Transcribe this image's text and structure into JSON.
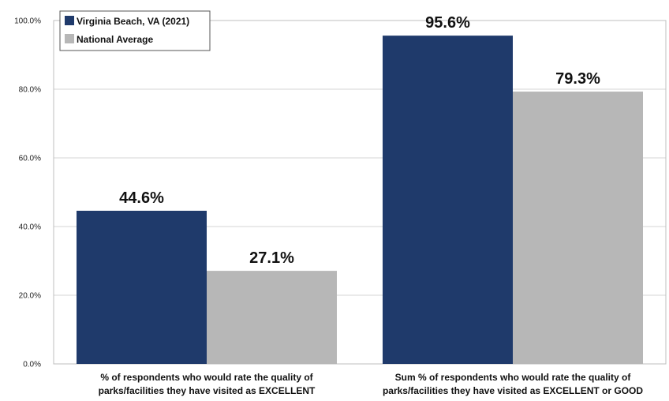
{
  "chart_data": {
    "type": "bar",
    "categories": [
      [
        "% of respondents who would rate the quality of",
        "parks/facilities they have visited as EXCELLENT"
      ],
      [
        "Sum % of respondents who would rate the quality of",
        "parks/facilities they have visited as EXCELLENT or GOOD"
      ]
    ],
    "series": [
      {
        "name": "Virginia Beach, VA (2021)",
        "values": [
          44.6,
          95.6
        ],
        "labels": [
          "44.6%",
          "95.6%"
        ],
        "color": "#1f3a6b"
      },
      {
        "name": "National Average",
        "values": [
          27.1,
          79.3
        ],
        "labels": [
          "27.1%",
          "79.3%"
        ],
        "color": "#b7b7b7"
      }
    ],
    "y_ticks": [
      0,
      20,
      40,
      60,
      80,
      100
    ],
    "y_tick_labels": [
      "0.0%",
      "20.0%",
      "40.0%",
      "60.0%",
      "80.0%",
      "100.0%"
    ],
    "ylim": [
      0,
      100
    ],
    "grid": true,
    "legend_position": "top-left"
  }
}
